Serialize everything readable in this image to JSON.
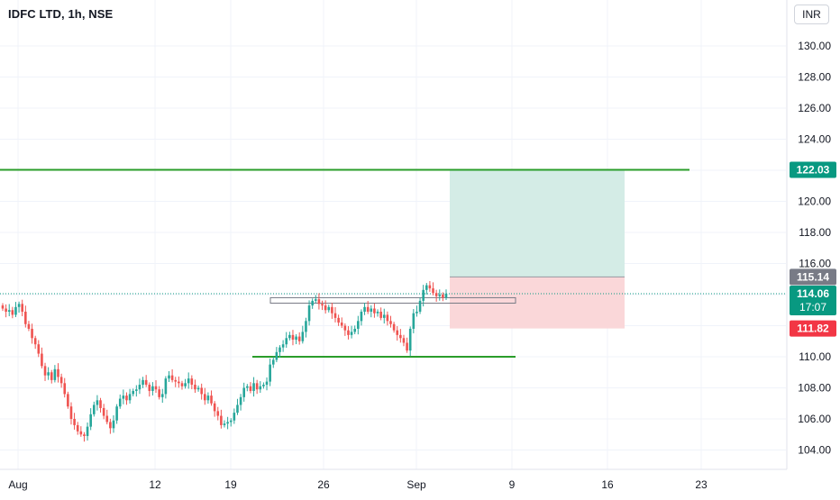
{
  "header": {
    "title": "IDFC LTD, 1h, NSE",
    "currency": "INR"
  },
  "chart_data": {
    "type": "candlestick",
    "ylim": [
      103.0,
      132.0
    ],
    "y_ticks": [
      "130.00",
      "128.00",
      "126.00",
      "124.00",
      "122.00",
      "120.00",
      "118.00",
      "116.00",
      "114.00",
      "112.00",
      "110.00",
      "108.00",
      "106.00",
      "104.00"
    ],
    "x_ticks": [
      "Aug",
      "12",
      "19",
      "26",
      "Sep",
      "9",
      "16",
      "23"
    ],
    "grid": true,
    "colors": {
      "up": "#26a69a",
      "down": "#ef5350",
      "grid": "#f0f3fa",
      "level": "#2a9d2a",
      "target_zone": "#d4ece6",
      "stop_zone": "#fad7d9",
      "price_tag": "#089981",
      "entry_tag": "#787b86",
      "stop_tag": "#f23645"
    },
    "price_labels": {
      "target": "122.03",
      "entry": "115.14",
      "current": "114.06",
      "countdown": "17:07",
      "stop": "111.82"
    },
    "levels": {
      "resistance": 122.03,
      "support": 110.0,
      "entry": 115.14,
      "stop": 111.82,
      "current": 114.06
    },
    "range_box": {
      "low": 113.45,
      "high": 113.8
    },
    "closes": [
      113.1,
      112.9,
      113.0,
      112.7,
      113.2,
      113.4,
      112.9,
      112.1,
      111.8,
      111.2,
      110.8,
      110.2,
      109.4,
      108.8,
      109.0,
      108.5,
      109.2,
      108.7,
      108.3,
      107.6,
      106.8,
      106.0,
      105.6,
      105.2,
      105.0,
      104.9,
      105.5,
      106.3,
      106.9,
      107.2,
      106.7,
      106.2,
      105.8,
      105.4,
      105.9,
      106.8,
      107.3,
      107.5,
      107.2,
      107.6,
      107.8,
      107.9,
      108.2,
      108.5,
      108.2,
      107.8,
      108.1,
      107.9,
      107.4,
      107.6,
      108.6,
      108.8,
      108.5,
      108.4,
      108.3,
      108.1,
      108.3,
      108.6,
      108.2,
      107.9,
      108.0,
      107.6,
      107.2,
      107.5,
      107.0,
      106.5,
      106.2,
      105.6,
      105.7,
      105.8,
      105.9,
      106.4,
      106.9,
      107.4,
      108.0,
      108.1,
      107.8,
      108.3,
      107.9,
      108.1,
      108.2,
      108.4,
      109.5,
      109.8,
      110.3,
      110.6,
      110.8,
      111.2,
      111.4,
      111.1,
      111.3,
      111.0,
      111.6,
      112.3,
      113.3,
      113.6,
      113.7,
      113.4,
      113.3,
      113.0,
      113.2,
      112.8,
      112.5,
      112.2,
      112.0,
      111.7,
      111.4,
      111.6,
      111.8,
      112.3,
      112.9,
      113.2,
      112.9,
      113.1,
      112.8,
      112.9,
      112.5,
      112.7,
      112.3,
      112.1,
      111.7,
      111.4,
      111.2,
      110.9,
      110.4,
      111.8,
      112.8,
      112.9,
      113.6,
      114.3,
      114.6,
      114.4,
      114.1,
      113.9,
      114.0,
      113.8,
      114.06
    ]
  }
}
